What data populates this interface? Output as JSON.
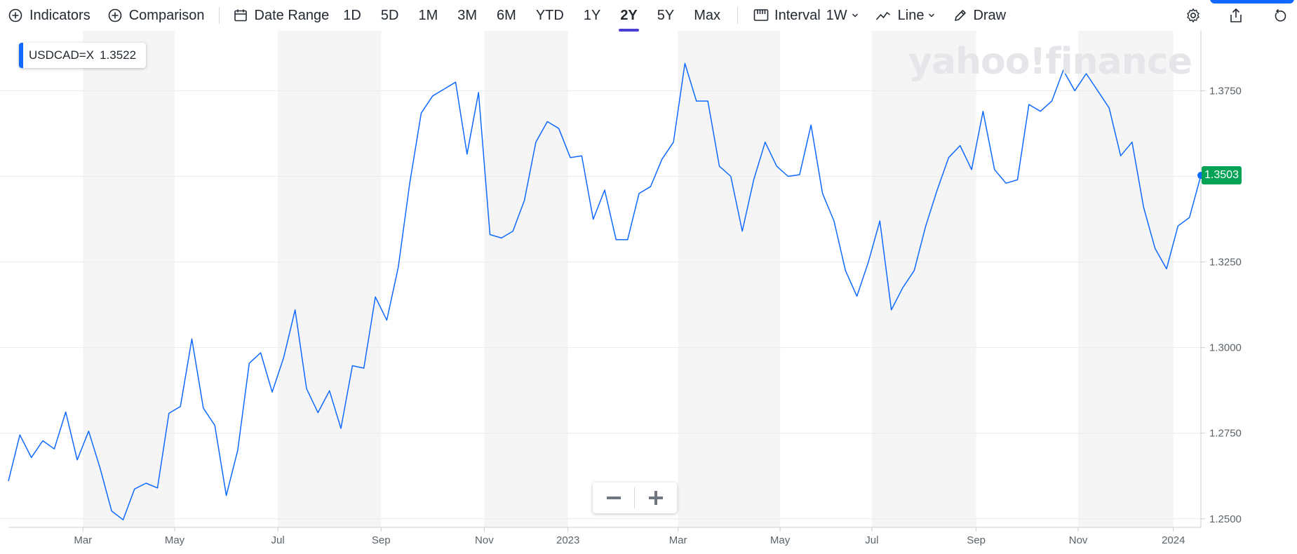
{
  "toolbar": {
    "indicators_label": "Indicators",
    "comparison_label": "Comparison",
    "date_range_label": "Date Range",
    "ranges": [
      "1D",
      "5D",
      "1M",
      "3M",
      "6M",
      "YTD",
      "1Y",
      "2Y",
      "5Y",
      "Max"
    ],
    "active_range": "2Y",
    "interval_label": "Interval",
    "interval_value": "1W",
    "chart_type_label": "Line",
    "draw_label": "Draw"
  },
  "legend": {
    "symbol": "USDCAD=X",
    "value": "1.3522"
  },
  "watermark": "yahoo!finance",
  "last_price": "1.3503",
  "colors": {
    "line": "#0f69ff",
    "accent": "#4a3fd0",
    "last_price_bg": "#00a355",
    "band": "#f5f5f6"
  },
  "icons": [
    "plus-circle-icon",
    "calendar-icon",
    "interval-icon",
    "line-chart-icon",
    "pencil-icon",
    "gear-icon",
    "share-icon",
    "reset-icon",
    "minus-icon",
    "plus-icon"
  ],
  "chart_data": {
    "type": "line",
    "series": [
      {
        "name": "USDCAD=X",
        "values": [
          1.261,
          1.2745,
          1.2679,
          1.2728,
          1.2704,
          1.2812,
          1.2672,
          1.2756,
          1.2647,
          1.2523,
          1.2497,
          1.2587,
          1.2604,
          1.259,
          1.2808,
          1.2828,
          1.3025,
          1.2823,
          1.2773,
          1.2568,
          1.27,
          1.2954,
          1.2985,
          1.287,
          1.297,
          1.311,
          1.288,
          1.281,
          1.2874,
          1.2764,
          1.2947,
          1.294,
          1.3148,
          1.308,
          1.3235,
          1.348,
          1.3685,
          1.3735,
          1.3755,
          1.3775,
          1.3565,
          1.3745,
          1.333,
          1.332,
          1.334,
          1.343,
          1.36,
          1.366,
          1.364,
          1.3555,
          1.356,
          1.3375,
          1.346,
          1.3315,
          1.3315,
          1.345,
          1.347,
          1.355,
          1.36,
          1.383,
          1.372,
          1.372,
          1.353,
          1.35,
          1.334,
          1.349,
          1.36,
          1.353,
          1.35,
          1.3505,
          1.365,
          1.345,
          1.337,
          1.3225,
          1.315,
          1.325,
          1.337,
          1.311,
          1.3175,
          1.3225,
          1.3355,
          1.346,
          1.3555,
          1.359,
          1.352,
          1.369,
          1.352,
          1.348,
          1.349,
          1.371,
          1.369,
          1.372,
          1.381,
          1.375,
          1.38,
          1.375,
          1.37,
          1.356,
          1.36,
          1.341,
          1.329,
          1.323,
          1.3355,
          1.338,
          1.3503
        ]
      }
    ],
    "x_tick_labels": [
      "Mar",
      "May",
      "Jul",
      "Sep",
      "Nov",
      "2023",
      "Mar",
      "May",
      "Jul",
      "Sep",
      "Nov",
      "2024"
    ],
    "x_tick_index": [
      6.5,
      14.5,
      23.5,
      32.5,
      41.5,
      48.8,
      58.4,
      67.3,
      75.3,
      84.4,
      93.3,
      101.6
    ],
    "y_ticks": [
      1.25,
      1.275,
      1.3,
      1.325,
      1.35,
      1.375
    ],
    "y_tick_labels": [
      "1.2500",
      "1.2750",
      "1.3000",
      "1.3250",
      "1.3500",
      "1.3750"
    ],
    "ylim": [
      1.2475,
      1.3925
    ],
    "shaded_band_index_ranges": [
      [
        6.5,
        14.5
      ],
      [
        23.5,
        32.5
      ],
      [
        41.5,
        48.8
      ],
      [
        58.4,
        67.3
      ],
      [
        75.3,
        84.4
      ],
      [
        93.3,
        101.6
      ]
    ],
    "grid": true,
    "legend_position": "top-left"
  }
}
